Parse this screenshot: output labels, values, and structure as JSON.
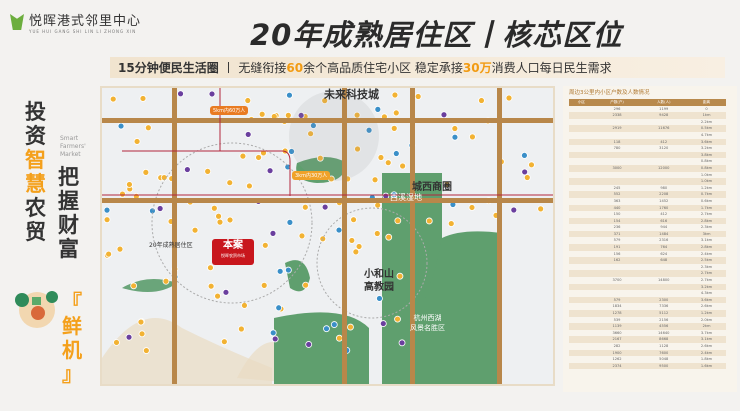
{
  "brand": {
    "name": "悦晖港式邻里中心",
    "pinyin": "YUE HUI GANG SHI LIN LI ZHONG XIN"
  },
  "title": "20年成熟居住区丨核芯区位",
  "subtitle": {
    "lead": "15分钟便民生活圈",
    "sep": "丨",
    "t1": "无缝衔接",
    "n1": "60",
    "t2": "余个高品质住宅小区  稳定承接",
    "n2": "30万",
    "t3": "消费人口每日民生需求"
  },
  "slogan": {
    "col1": [
      "投",
      "资",
      "智",
      "慧",
      "农",
      "贸"
    ],
    "col2": [
      "把",
      "握",
      "财",
      "富"
    ],
    "col3": [
      "『",
      "鲜",
      "机",
      "』"
    ],
    "english": [
      "Smart",
      "Farmers'",
      "Market"
    ]
  },
  "map": {
    "labels": {
      "future": "未来科技城",
      "west": "城西商圈",
      "xixi": "西溪湿地",
      "mature": "20年成熟居住区",
      "xiaohe": "小和山\n高教园",
      "xiaohe1": "小和山",
      "xiaohe2": "高教园",
      "westlake1": "杭州西湖",
      "westlake2": "风景名胜区",
      "site": "本案",
      "site_sub": "悦晖农贸市场",
      "bubble5": "5km内60万人",
      "bubble3": "3km内30万人"
    },
    "colors": {
      "road": "#b8874a",
      "green": "#5f9f6e",
      "site": "#c8161d",
      "dot": "#f2b233"
    }
  },
  "table": {
    "title": "周边3公里内小区户数及人数情况",
    "headers": [
      "小区",
      "户数(户)",
      "人数(人)",
      "距离"
    ],
    "rows": [
      [
        "",
        "296",
        "1199",
        "0"
      ],
      [
        "",
        "2338",
        "9428",
        "1km"
      ],
      [
        "",
        "",
        "",
        "2.2km"
      ],
      [
        "",
        "2919",
        "11676",
        "0.5km"
      ],
      [
        "",
        "",
        "",
        "4.7km"
      ],
      [
        "",
        "118",
        "412",
        "3.6km"
      ],
      [
        "",
        "780",
        "3120",
        "3.2km"
      ],
      [
        "",
        "",
        "",
        "3.8km"
      ],
      [
        "",
        "",
        "",
        "0.8km"
      ],
      [
        "",
        "3000",
        "12000",
        "0.8km"
      ],
      [
        "",
        "",
        "",
        "1.0km"
      ],
      [
        "",
        "",
        "",
        "1.0km"
      ],
      [
        "",
        "245",
        "980",
        "1.2km"
      ],
      [
        "",
        "552",
        "2208",
        "0.7km"
      ],
      [
        "",
        "363",
        "1452",
        "0.6km"
      ],
      [
        "",
        "440",
        "1760",
        "1.7km"
      ],
      [
        "",
        "150",
        "412",
        "2.7km"
      ],
      [
        "",
        "154",
        "616",
        "2.8km"
      ],
      [
        "",
        "236",
        "944",
        "2.3km"
      ],
      [
        "",
        "371",
        "1484",
        "3km"
      ],
      [
        "",
        "579",
        "2316",
        "3.1km"
      ],
      [
        "",
        "191",
        "764",
        "2.8km"
      ],
      [
        "",
        "156",
        "624",
        "2.4km"
      ],
      [
        "",
        "162",
        "648",
        "2.5km"
      ],
      [
        "",
        "",
        "",
        "2.3km"
      ],
      [
        "",
        "",
        "",
        "2.7km"
      ],
      [
        "",
        "3700",
        "14800",
        "2.7km"
      ],
      [
        "",
        "",
        "",
        "3.2km"
      ],
      [
        "",
        "",
        "",
        "4.3km"
      ],
      [
        "",
        "579",
        "2300",
        "3.6km"
      ],
      [
        "",
        "1834",
        "7336",
        "2.6km"
      ],
      [
        "",
        "1278",
        "5112",
        "1.2km"
      ],
      [
        "",
        "539",
        "2156",
        "2.0km"
      ],
      [
        "",
        "1139",
        "4556",
        "2km"
      ],
      [
        "",
        "3660",
        "14640",
        "3.7km"
      ],
      [
        "",
        "2167",
        "8668",
        "3.1km"
      ],
      [
        "",
        "282",
        "1128",
        "2.6km"
      ],
      [
        "",
        "1900",
        "7600",
        "2.4km"
      ],
      [
        "",
        "1262",
        "5048",
        "1.8km"
      ],
      [
        "",
        "2374",
        "9500",
        "1.6km"
      ]
    ]
  }
}
